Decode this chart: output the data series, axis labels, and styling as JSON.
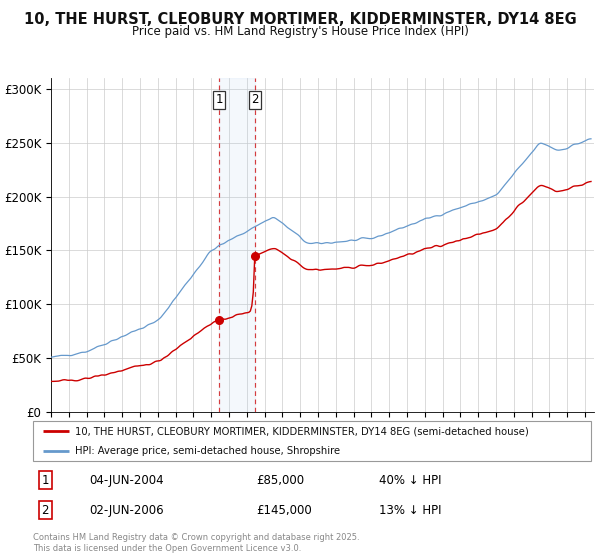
{
  "title": "10, THE HURST, CLEOBURY MORTIMER, KIDDERMINSTER, DY14 8EG",
  "subtitle": "Price paid vs. HM Land Registry's House Price Index (HPI)",
  "ylabel_ticks": [
    "£0",
    "£50K",
    "£100K",
    "£150K",
    "£200K",
    "£250K",
    "£300K"
  ],
  "ytick_vals": [
    0,
    50000,
    100000,
    150000,
    200000,
    250000,
    300000
  ],
  "ylim": [
    0,
    310000
  ],
  "xlim_start": 1995.0,
  "xlim_end": 2025.5,
  "red_color": "#cc0000",
  "blue_color": "#6699cc",
  "sale1_year": 2004.42,
  "sale1_price": 85000,
  "sale1_date": "04-JUN-2004",
  "sale1_pct": "40% ↓ HPI",
  "sale2_year": 2006.42,
  "sale2_price": 145000,
  "sale2_date": "02-JUN-2006",
  "sale2_pct": "13% ↓ HPI",
  "legend_red": "10, THE HURST, CLEOBURY MORTIMER, KIDDERMINSTER, DY14 8EG (semi-detached house)",
  "legend_blue": "HPI: Average price, semi-detached house, Shropshire",
  "footnote": "Contains HM Land Registry data © Crown copyright and database right 2025.\nThis data is licensed under the Open Government Licence v3.0.",
  "background_color": "#ffffff",
  "grid_color": "#cccccc"
}
